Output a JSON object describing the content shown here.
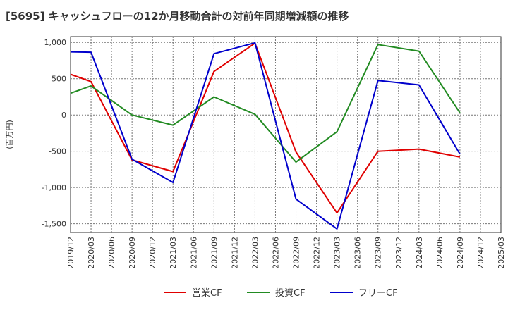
{
  "chart_data": {
    "type": "line",
    "title": "[5695]  キャッシュフローの12か月移動合計の対前年同期増減額の推移",
    "xlabel": "",
    "ylabel": "(百万円)",
    "ylim": [
      -1620,
      1080
    ],
    "yticks": [
      1000,
      500,
      0,
      -500,
      -1000,
      -1500
    ],
    "ytick_labels": [
      "1,000",
      "500",
      "0",
      "-500",
      "-1,000",
      "-1,500"
    ],
    "categories": [
      "2019/12",
      "2020/03",
      "2020/06",
      "2020/09",
      "2020/12",
      "2021/03",
      "2021/06",
      "2021/09",
      "2021/12",
      "2022/03",
      "2022/06",
      "2022/09",
      "2022/12",
      "2023/03",
      "2023/06",
      "2023/09",
      "2023/12",
      "2024/03",
      "2024/06",
      "2024/09",
      "2024/12",
      "2025/03"
    ],
    "grid": true,
    "legend_position": "bottom",
    "series": [
      {
        "name": "営業CF",
        "color": "#e00000",
        "values": [
          560,
          460,
          null,
          -620,
          null,
          -780,
          null,
          600,
          null,
          990,
          null,
          -510,
          null,
          -1350,
          null,
          -500,
          null,
          -470,
          null,
          -580,
          null,
          null
        ]
      },
      {
        "name": "投資CF",
        "color": "#228b22",
        "values": [
          300,
          400,
          null,
          0,
          null,
          -140,
          null,
          250,
          null,
          10,
          null,
          -650,
          null,
          -230,
          null,
          970,
          null,
          880,
          null,
          30,
          null,
          null
        ]
      },
      {
        "name": "フリーCF",
        "color": "#0000cc",
        "values": [
          870,
          865,
          null,
          -610,
          null,
          -930,
          null,
          845,
          null,
          995,
          null,
          -1160,
          null,
          -1570,
          null,
          475,
          null,
          415,
          null,
          -540,
          null,
          null
        ]
      }
    ]
  }
}
